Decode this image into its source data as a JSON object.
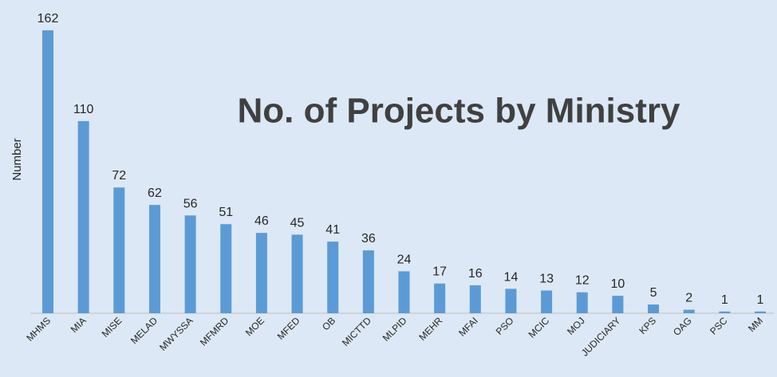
{
  "chart_data": {
    "type": "bar",
    "title": "No. of Projects by Ministry",
    "y_label": "Number",
    "categories": [
      "MHMS",
      "MIA",
      "MISE",
      "MELAD",
      "MWYSSA",
      "MFMRD",
      "MOE",
      "MFED",
      "OB",
      "MICTTD",
      "MLPID",
      "MEHR",
      "MFAI",
      "PSO",
      "MCIC",
      "MOJ",
      "JUDICIARY",
      "KPS",
      "OAG",
      "PSC",
      "MM"
    ],
    "values": [
      162,
      110,
      72,
      62,
      56,
      51,
      46,
      45,
      41,
      36,
      24,
      17,
      16,
      14,
      13,
      12,
      10,
      5,
      2,
      1,
      1
    ],
    "color": "#5b9bd5"
  }
}
